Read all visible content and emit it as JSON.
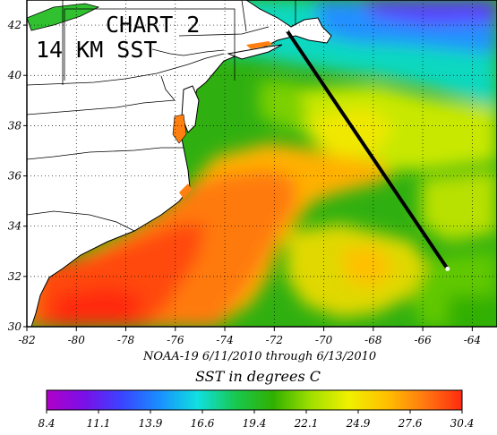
{
  "title": {
    "line1": "CHART 2",
    "line2": "14 KM SST"
  },
  "caption": {
    "satellite_line": "NOAA-19  6/11/2010 through 6/13/2010",
    "units_line": "SST in degrees C"
  },
  "axes": {
    "lon_range": [
      -82,
      -63
    ],
    "lat_range": [
      30,
      43
    ],
    "lon_ticks": [
      -82,
      -80,
      -78,
      -76,
      -74,
      -72,
      -70,
      -68,
      -66,
      -64
    ],
    "lat_ticks": [
      30,
      32,
      34,
      36,
      38,
      40,
      42
    ],
    "grid": "dotted"
  },
  "colorbar": {
    "labels": [
      "8.4",
      "11.1",
      "13.9",
      "16.6",
      "19.4",
      "22.1",
      "24.9",
      "27.6",
      "30.4"
    ],
    "min": 8.4,
    "max": 30.4,
    "colors": [
      "#b000c8",
      "#7a10e8",
      "#3a44ff",
      "#1890ff",
      "#10e0e0",
      "#18c850",
      "#30b000",
      "#a0e000",
      "#f0f000",
      "#ffc000",
      "#ff7a10",
      "#ff2a10"
    ]
  },
  "transect": {
    "start": {
      "lon": -71.5,
      "lat": 41.8
    },
    "end": {
      "lon": -65.0,
      "lat": 32.3
    }
  },
  "colors": {
    "land": "#ffffff",
    "coast_line": "#000000",
    "hot_sst": "#ff6a10",
    "cool_sst": "#10d0c0"
  }
}
